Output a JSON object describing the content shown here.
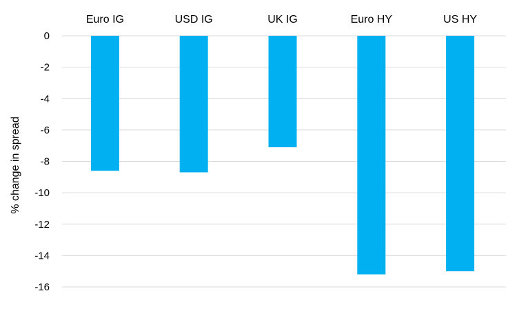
{
  "chart_data": {
    "type": "bar",
    "title": "",
    "xlabel": "",
    "ylabel": "% change in spread",
    "categories": [
      "Euro IG",
      "USD IG",
      "UK IG",
      "Euro HY",
      "US HY"
    ],
    "values": [
      -8.6,
      -8.7,
      -7.1,
      -15.2,
      -15.0
    ],
    "ylim": [
      -16,
      0
    ],
    "yticks": [
      0,
      -2,
      -4,
      -6,
      -8,
      -10,
      -12,
      -14,
      -16
    ],
    "category_axis_position": "top",
    "grid": true,
    "legend": "none",
    "bar_color": "#00b0f0",
    "grid_color": "#d9d9d9"
  }
}
